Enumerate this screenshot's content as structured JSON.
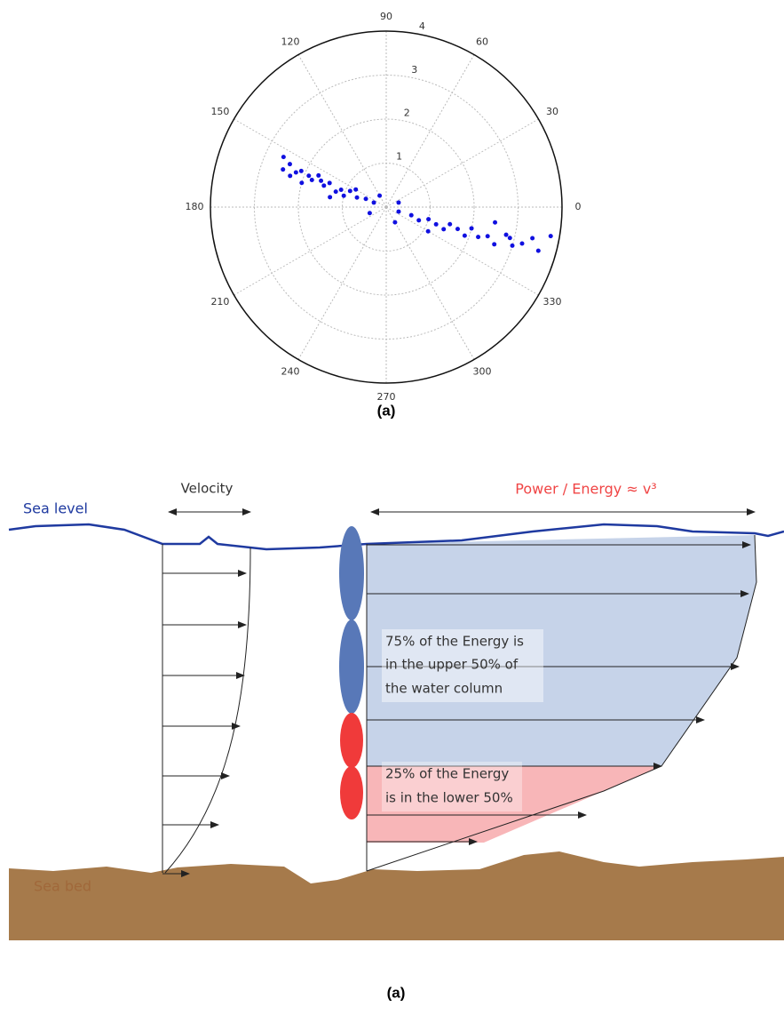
{
  "chart_data": {
    "type": "polar-scatter",
    "color": "#1010e0",
    "theta": [
      160,
      158,
      162,
      156,
      159,
      163,
      157,
      161,
      155,
      160,
      158,
      164,
      157,
      159,
      162,
      156,
      160,
      154,
      165,
      158,
      150,
      170,
      340,
      342,
      338,
      344,
      341,
      339,
      345,
      343,
      340,
      346,
      342,
      344,
      341,
      347,
      343,
      345,
      348,
      344,
      350,
      346,
      330,
      352,
      200,
      20,
      120,
      300
    ],
    "r": [
      0.3,
      0.5,
      0.7,
      0.9,
      1.1,
      1.2,
      1.4,
      1.5,
      1.7,
      1.8,
      1.9,
      2.0,
      2.1,
      2.2,
      2.3,
      2.4,
      2.5,
      2.6,
      1.0,
      1.6,
      0.8,
      1.3,
      0.3,
      0.6,
      0.8,
      1.0,
      1.2,
      1.4,
      1.5,
      1.7,
      1.9,
      2.0,
      2.2,
      2.4,
      2.6,
      2.8,
      3.0,
      3.2,
      3.4,
      3.6,
      3.8,
      2.9,
      1.1,
      2.5,
      0.4,
      0.3,
      0.3,
      0.4
    ],
    "rlim": [
      0,
      4
    ],
    "rticks": [
      1,
      2,
      3,
      4
    ],
    "thetaticks": [
      0,
      30,
      60,
      90,
      120,
      150,
      180,
      210,
      240,
      270,
      300,
      330
    ],
    "grid": true
  },
  "caption_top": "(a)",
  "diagram": {
    "velocity_label": "Velocity",
    "sea_level": "Sea level",
    "power_label": "Power / Energy ≈ v³",
    "upper_note": [
      "75% of the Energy is",
      "in the upper 50% of",
      "the water column"
    ],
    "lower_note": [
      "25% of the Energy",
      "is in the lower 50%"
    ],
    "sea_bed": "Sea bed"
  },
  "caption_bottom": "(a)"
}
